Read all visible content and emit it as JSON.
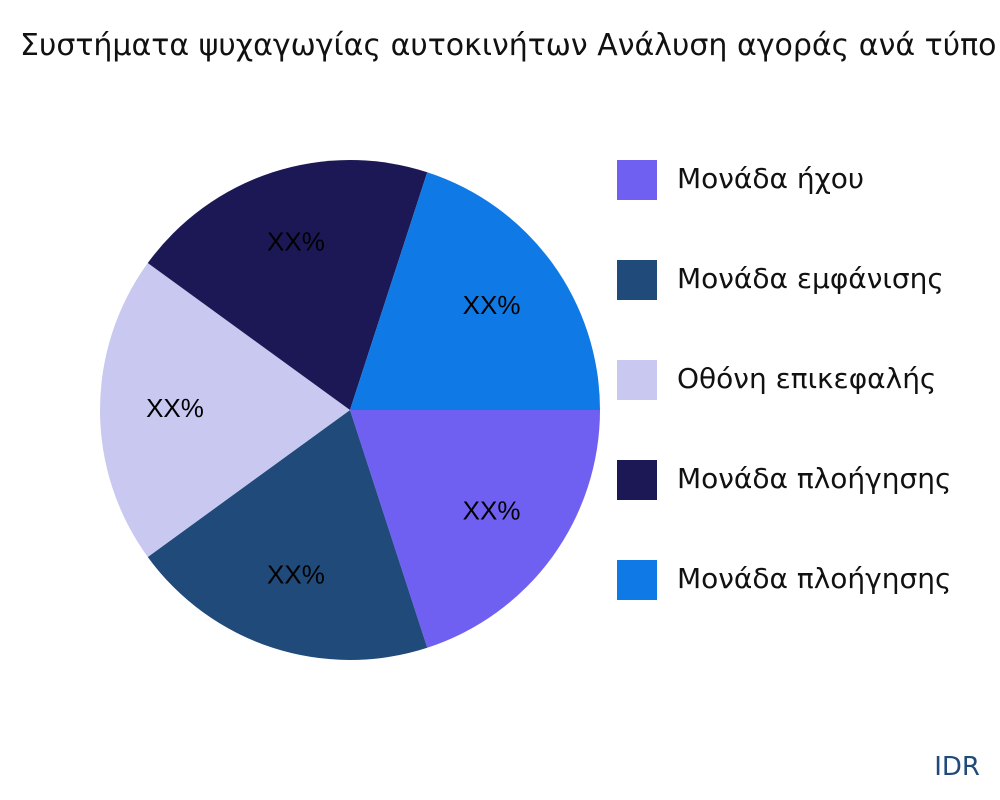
{
  "chart_data": {
    "type": "pie",
    "title": "Συστήματα ψυχαγωγίας αυτοκινήτων Ανάλυση αγοράς ανά τύπο",
    "categories": [
      "Μονάδα ήχου",
      "Μονάδα εμφάνισης",
      "Οθόνη επικεφαλής",
      "Μονάδα πλοήγησης",
      "Μονάδα πλοήγησης"
    ],
    "values": [
      20,
      20,
      20,
      20,
      20
    ],
    "value_labels": [
      "XX%",
      "XX%",
      "XX%",
      "XX%",
      "XX%"
    ],
    "colors": [
      "#7060f2",
      "#1f4a7a",
      "#c8c8f0",
      "#1c1856",
      "#0f7ae5"
    ],
    "legend": "right"
  },
  "footer": "IDR"
}
